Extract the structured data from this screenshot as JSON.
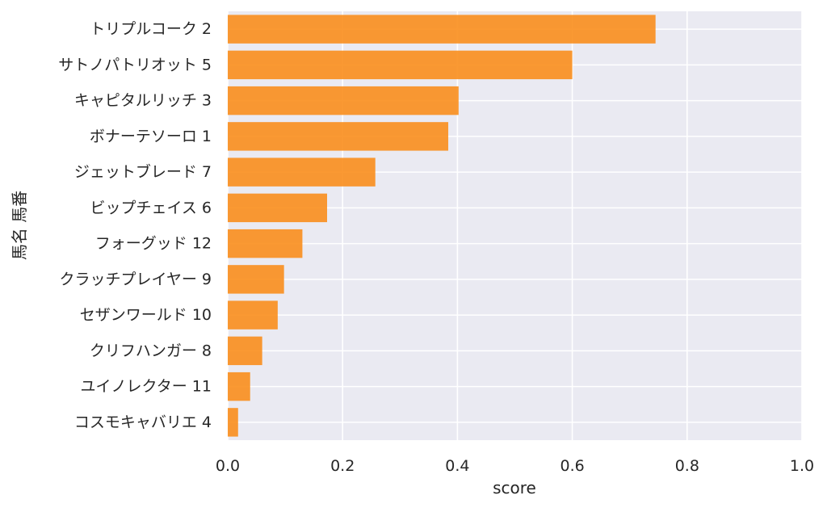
{
  "chart_data": {
    "type": "bar",
    "orientation": "horizontal",
    "categories": [
      "トリプルコーク 2",
      "サトノパトリオット 5",
      "キャピタルリッチ 3",
      "ボナーテソーロ 1",
      "ジェットブレード 7",
      "ビップチェイス 6",
      "フォーグッド 12",
      "クラッチプレイヤー 9",
      "セザンワールド 10",
      "クリフハンガー 8",
      "ユイノレクター 11",
      "コスモキャバリエ 4"
    ],
    "values": [
      0.745,
      0.6,
      0.402,
      0.384,
      0.257,
      0.173,
      0.13,
      0.098,
      0.087,
      0.06,
      0.039,
      0.018
    ],
    "xlabel": "score",
    "ylabel": "馬名 馬番",
    "xlim": [
      0.0,
      1.0
    ],
    "xticks": [
      "0.0",
      "0.2",
      "0.4",
      "0.6",
      "0.8",
      "1.0"
    ],
    "grid": true,
    "colors": {
      "bar": "#f98e1d",
      "plot_background": "#eaeaf2",
      "grid": "#ffffff",
      "text": "#262626"
    }
  }
}
